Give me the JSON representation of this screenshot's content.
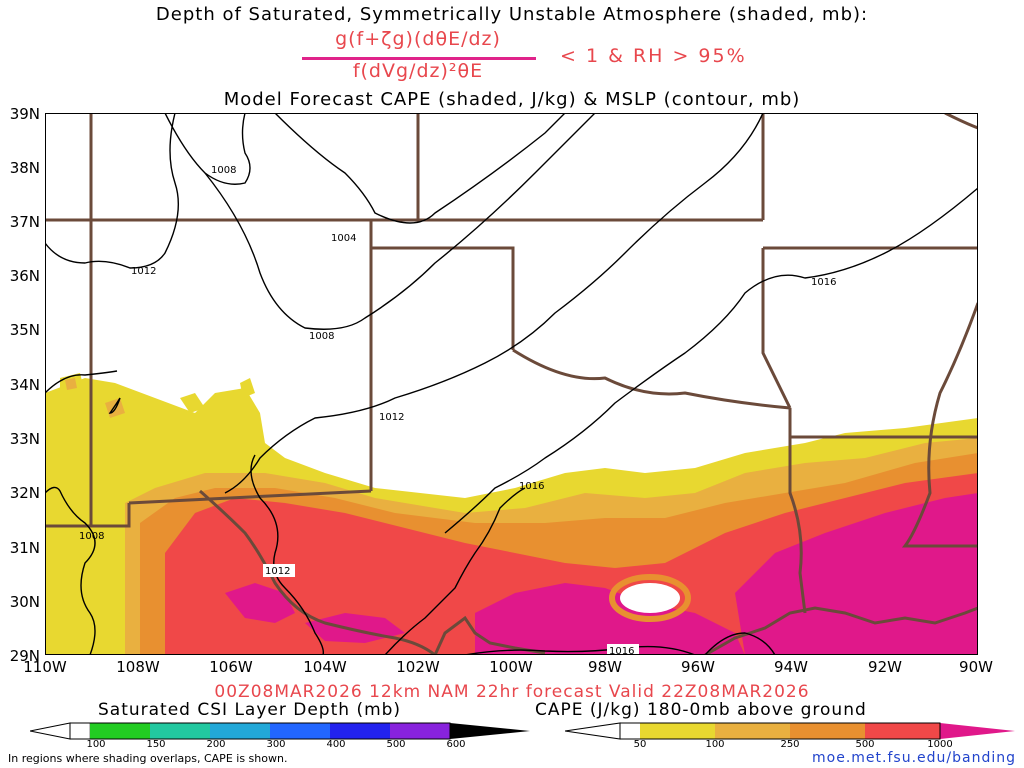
{
  "header": {
    "title": "Depth of Saturated, Symmetrically Unstable Atmosphere (shaded, mb):",
    "numerator": "g(f+ζg)(dθE/dz)",
    "denominator": "f(dVg/dz)²θE",
    "condition": "< 1 & RH > 95%",
    "subtitle": "Model Forecast CAPE (shaded, J/kg) & MSLP (contour, mb)"
  },
  "lat_labels": [
    "39N",
    "38N",
    "37N",
    "36N",
    "35N",
    "34N",
    "33N",
    "32N",
    "31N",
    "30N",
    "29N"
  ],
  "lon_labels": [
    "110W",
    "108W",
    "106W",
    "104W",
    "102W",
    "100W",
    "98W",
    "96W",
    "94W",
    "92W",
    "90W"
  ],
  "contour_labels": {
    "c1008a": "1008",
    "c1004": "1004",
    "c1012a": "1012",
    "c1008b": "1008",
    "c1012b": "1012",
    "c1016a": "1016",
    "c1016b": "1016",
    "c1008c": "1008",
    "c1012c": "1012",
    "c1016c": "1016"
  },
  "valid_line": "00Z08MAR2026 12km NAM 22hr forecast Valid 22Z08MAR2026",
  "csi_bar": {
    "title": "Saturated CSI Layer Depth (mb)",
    "labels": [
      "100",
      "150",
      "200",
      "300",
      "400",
      "500",
      "600"
    ]
  },
  "cape_bar": {
    "title": "CAPE (J/kg) 180-0mb above ground",
    "labels": [
      "50",
      "100",
      "250",
      "500",
      "1000"
    ]
  },
  "footnote": "In regions where shading overlaps, CAPE is shown.",
  "credit": "moe.met.fsu.edu/banding",
  "colors": {
    "cape_50": "#e8d830",
    "cape_100": "#e9b040",
    "cape_250": "#e89030",
    "cape_500": "#f04848",
    "cape_1000": "#e0188a",
    "border": "#6b4a3a"
  }
}
